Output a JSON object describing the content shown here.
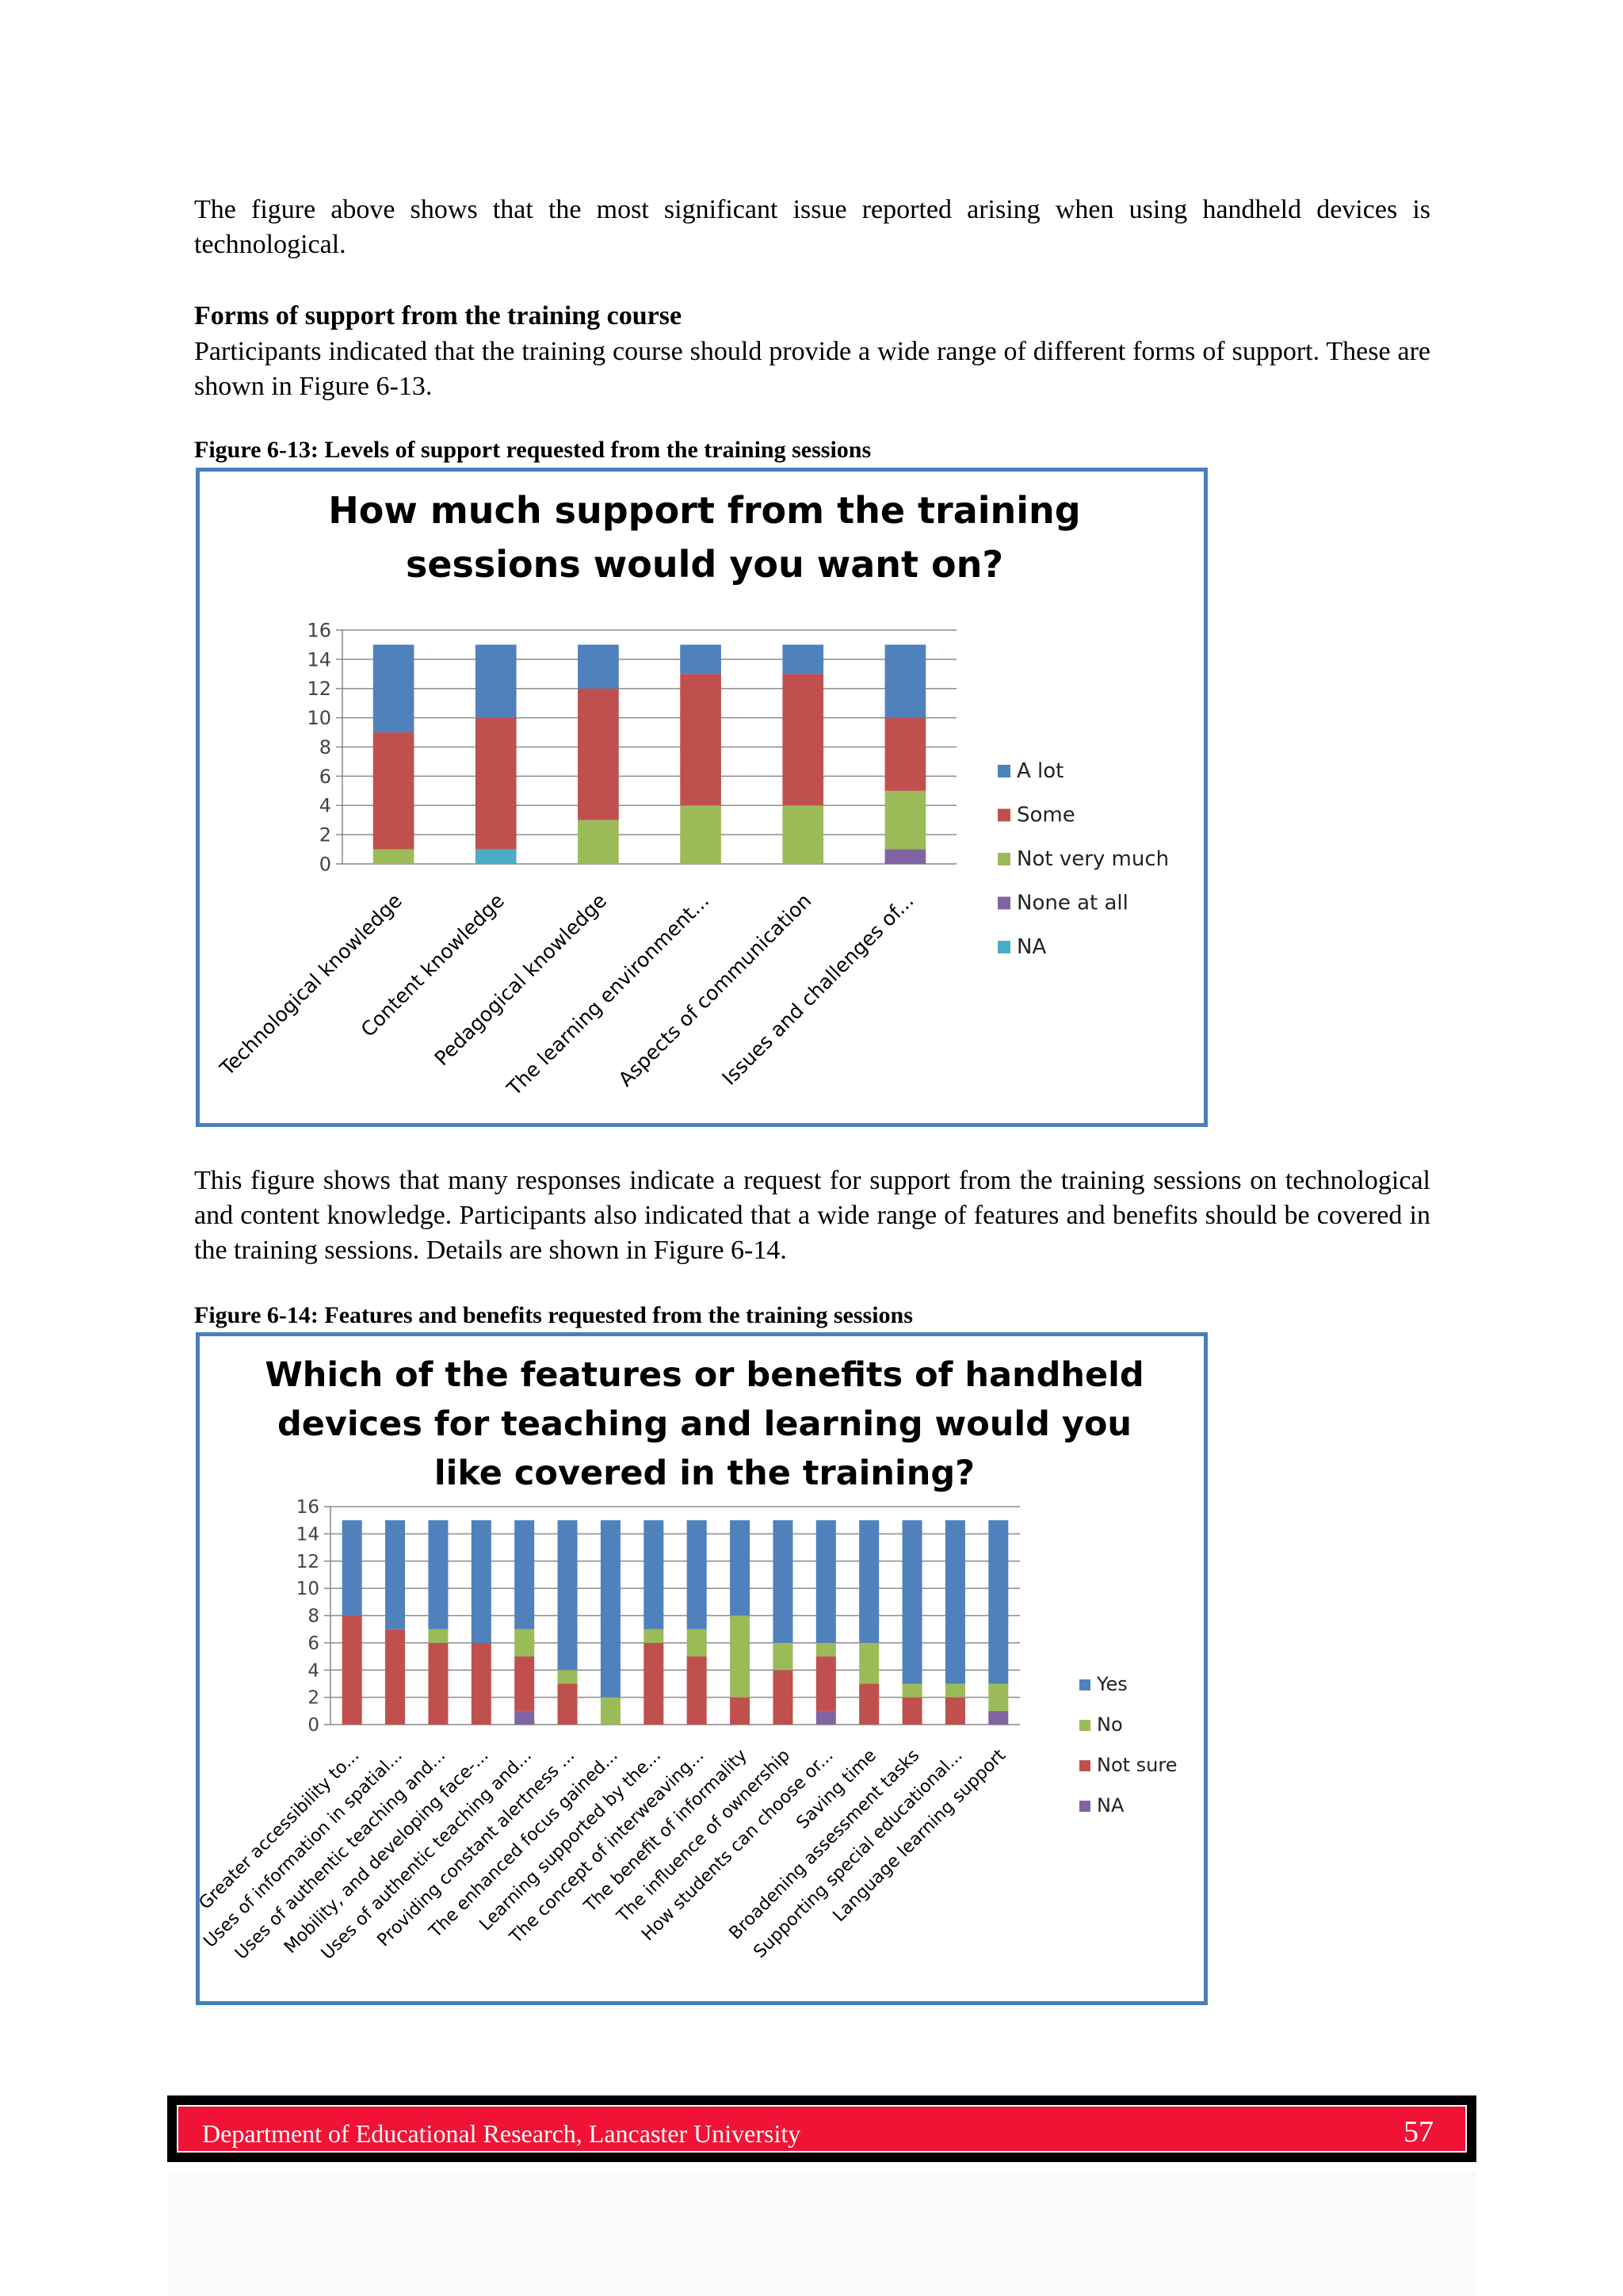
{
  "text": {
    "intro": "The figure above shows that the most significant issue reported arising when using handheld devices is technological.",
    "section_heading": "Forms of support from the training course",
    "section_para": "Participants indicated that the training course should provide a wide range of different forms of support. These are shown in Figure 6-13.",
    "fig13_caption": "Figure 6-13: Levels of support requested from the training sessions",
    "middle_para": "This figure shows that many responses indicate a request for support from the training sessions on technological and content knowledge. Participants also indicated that a wide range of features and benefits should be covered in the training sessions. Details are shown in Figure 6-14.",
    "fig14_caption": "Figure 6-14: Features and benefits requested from the training sessions"
  },
  "footer": {
    "text": "Department of Educational Research, Lancaster University",
    "page": "57"
  },
  "chart_data": [
    {
      "type": "bar",
      "stacked": true,
      "title_lines": [
        "How much support from the training",
        "sessions would you want on?"
      ],
      "categories": [
        "Technological knowledge",
        "Content knowledge",
        "Pedagogical knowledge",
        "The learning environment...",
        "Aspects of communication",
        "Issues and challenges of..."
      ],
      "ylim": [
        0,
        16
      ],
      "yticks": [
        "0",
        "2",
        "4",
        "6",
        "8",
        "10",
        "12",
        "14",
        "16"
      ],
      "grid": true,
      "legend": "right",
      "series": [
        {
          "name": "NA",
          "color": "#4bacc6",
          "values": [
            0,
            1,
            0,
            0,
            0,
            0
          ]
        },
        {
          "name": "None at all",
          "color": "#8064a2",
          "values": [
            0,
            0,
            0,
            0,
            0,
            1
          ]
        },
        {
          "name": "Not very much",
          "color": "#9bbb59",
          "values": [
            1,
            0,
            3,
            4,
            4,
            4
          ]
        },
        {
          "name": "Some",
          "color": "#c0504d",
          "values": [
            8,
            9,
            9,
            9,
            9,
            5
          ]
        },
        {
          "name": "A lot",
          "color": "#4f81bd",
          "values": [
            6,
            5,
            3,
            2,
            2,
            5
          ]
        }
      ]
    },
    {
      "type": "bar",
      "stacked": true,
      "title_lines": [
        "Which of the features or benefits of handheld",
        "devices for teaching and learning would you",
        "like covered in the training?"
      ],
      "categories": [
        "Greater accessibility to...",
        "Uses of information in spatial...",
        "Uses of authentic teaching and...",
        "Mobility, and developing face-...",
        "Uses of authentic teaching and...",
        "Providing constant alertness ...",
        "The enhanced focus gained...",
        "Learning supported by the...",
        "The concept of interweaving...",
        "The benefit of informality",
        "The influence of ownership",
        "How students can choose or...",
        "Saving time",
        "Broadening assessment tasks",
        "Supporting special educational...",
        "Language learning support"
      ],
      "ylim": [
        0,
        16
      ],
      "yticks": [
        "0",
        "2",
        "4",
        "6",
        "8",
        "10",
        "12",
        "14",
        "16"
      ],
      "grid": true,
      "legend": "right",
      "series": [
        {
          "name": "NA",
          "color": "#8064a2",
          "values": [
            0,
            0,
            0,
            0,
            1,
            0,
            0,
            0,
            0,
            0,
            0,
            1,
            0,
            0,
            0,
            1
          ]
        },
        {
          "name": "Not sure",
          "color": "#c0504d",
          "values": [
            8,
            7,
            6,
            6,
            4,
            3,
            0,
            6,
            5,
            2,
            4,
            4,
            3,
            2,
            2,
            0
          ]
        },
        {
          "name": "No",
          "color": "#9bbb59",
          "values": [
            0,
            0,
            1,
            0,
            2,
            1,
            2,
            1,
            2,
            6,
            2,
            1,
            3,
            1,
            1,
            2
          ]
        },
        {
          "name": "Yes",
          "color": "#4f81bd",
          "values": [
            7,
            8,
            8,
            9,
            8,
            11,
            13,
            8,
            8,
            7,
            9,
            9,
            9,
            12,
            12,
            12
          ]
        }
      ],
      "legend_order": [
        "Yes",
        "No",
        "Not sure",
        "NA"
      ]
    }
  ]
}
